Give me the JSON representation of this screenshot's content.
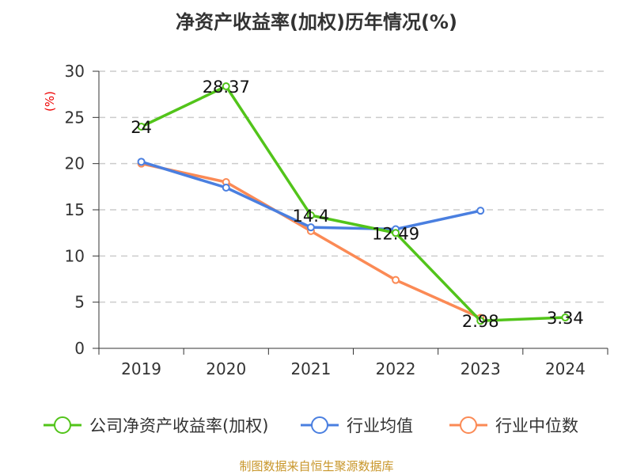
{
  "chart_data": {
    "type": "line",
    "title": "净资产收益率(加权)历年情况(%)",
    "ylabel": "(%)",
    "xlabel": "",
    "categories": [
      "2019",
      "2020",
      "2021",
      "2022",
      "2023",
      "2024"
    ],
    "ylim": [
      0,
      30
    ],
    "yticks": [
      0,
      5,
      10,
      15,
      20,
      25,
      30
    ],
    "grid": true,
    "legend_position": "bottom",
    "series": [
      {
        "name": "公司净资产收益率(加权)",
        "color": "#52c41a",
        "values": [
          24,
          28.37,
          14.4,
          12.49,
          2.98,
          3.34
        ],
        "labels": [
          "24",
          "28.37",
          "14.4",
          "12.49",
          "2.98",
          "3.34"
        ]
      },
      {
        "name": "行业均值",
        "color": "#4a7fe0",
        "values": [
          20.2,
          17.4,
          13.1,
          12.9,
          14.9,
          null
        ]
      },
      {
        "name": "行业中位数",
        "color": "#fb8a55",
        "values": [
          20.0,
          18.0,
          12.7,
          7.4,
          3.3,
          null
        ]
      }
    ]
  },
  "source": "制图数据来自恒生聚源数据库"
}
